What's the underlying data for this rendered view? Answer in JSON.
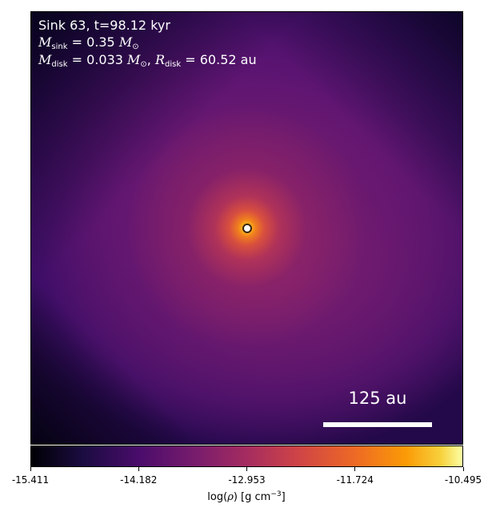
{
  "chart_data": {
    "type": "heatmap",
    "title_lines": {
      "line1": "Sink 63, t=98.12 kyr",
      "m_sink_symbol": "M",
      "m_sink_sub": "sink",
      "m_sink_value": "= 0.35",
      "m_disk_symbol": "M",
      "m_disk_sub": "disk",
      "m_disk_value": "= 0.033",
      "r_disk_symbol": "R",
      "r_disk_sub": "disk",
      "r_disk_value": "= 60.52 au",
      "msun_symbol": "M",
      "msun_sub": "⊙"
    },
    "scalebar_label": "125 au",
    "colormap": "inferno",
    "colorbar": {
      "label_prefix": "log(",
      "label_rho": "ρ",
      "label_units": ") [g cm",
      "label_exp": "−3",
      "label_suffix": "]",
      "range": [
        -15.411,
        -10.495
      ],
      "ticks": [
        "-15.411",
        "-14.182",
        "-12.953",
        "-11.724",
        "-10.495"
      ]
    }
  }
}
